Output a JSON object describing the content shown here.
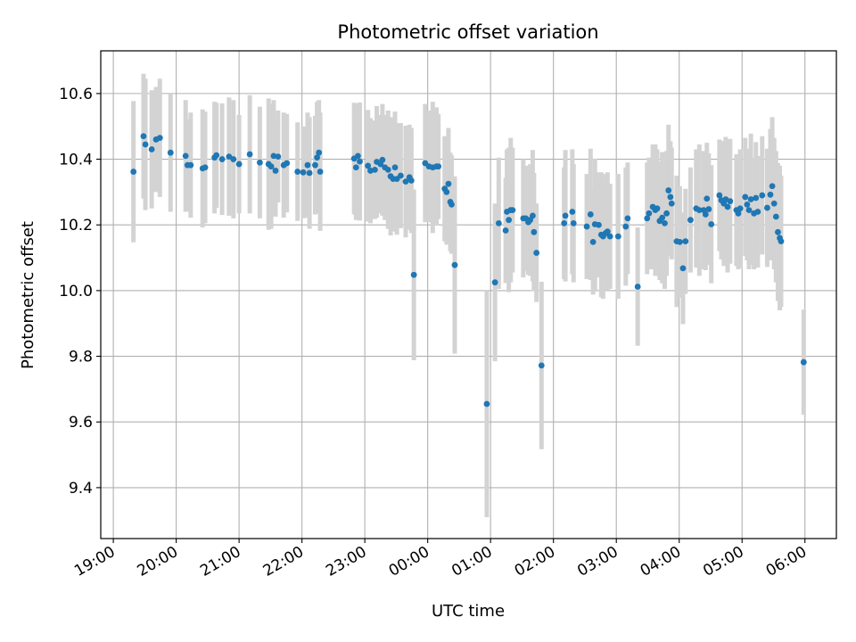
{
  "chart_data": {
    "type": "scatter",
    "title": "Photometric offset variation",
    "xlabel": "UTC time",
    "ylabel": "Photometric offset",
    "x_unit": "hours since 19:00 UTC",
    "xlim": [
      -0.2,
      11.5
    ],
    "ylim": [
      9.245,
      10.73
    ],
    "x_tick_values": [
      0,
      1,
      2,
      3,
      4,
      5,
      6,
      7,
      8,
      9,
      10,
      11
    ],
    "x_tick_labels": [
      "19:00",
      "20:00",
      "21:00",
      "22:00",
      "23:00",
      "00:00",
      "01:00",
      "02:00",
      "03:00",
      "04:00",
      "05:00",
      "06:00"
    ],
    "y_tick_values": [
      9.4,
      9.6,
      9.8,
      10.0,
      10.2,
      10.4,
      10.6
    ],
    "y_tick_labels": [
      "9.4",
      "9.6",
      "9.8",
      "10.0",
      "10.2",
      "10.4",
      "10.6"
    ],
    "grid": true,
    "colors": {
      "point": "#1f77b4",
      "errorbar": "#d3d3d3",
      "grid": "#b0b0b0"
    },
    "series": [
      {
        "points": [
          [
            0.32,
            10.362,
            0.215
          ],
          [
            0.48,
            10.47,
            0.19
          ],
          [
            0.51,
            10.445,
            0.2
          ],
          [
            0.61,
            10.43,
            0.18
          ],
          [
            0.68,
            10.46,
            0.16
          ],
          [
            0.74,
            10.465,
            0.18
          ],
          [
            0.91,
            10.42,
            0.18
          ],
          [
            1.15,
            10.41,
            0.17
          ],
          [
            1.18,
            10.382,
            0.14
          ],
          [
            1.23,
            10.382,
            0.16
          ],
          [
            1.42,
            10.372,
            0.18
          ],
          [
            1.46,
            10.375,
            0.17
          ],
          [
            1.61,
            10.405,
            0.17
          ],
          [
            1.64,
            10.412,
            0.16
          ],
          [
            1.73,
            10.4,
            0.17
          ],
          [
            1.84,
            10.408,
            0.18
          ],
          [
            1.91,
            10.4,
            0.18
          ],
          [
            2.0,
            10.385,
            0.15
          ],
          [
            2.17,
            10.415,
            0.18
          ],
          [
            2.33,
            10.39,
            0.17
          ],
          [
            2.47,
            10.385,
            0.2
          ],
          [
            2.51,
            10.378,
            0.19
          ],
          [
            2.55,
            10.41,
            0.17
          ],
          [
            2.58,
            10.365,
            0.14
          ],
          [
            2.62,
            10.408,
            0.14
          ],
          [
            2.71,
            10.382,
            0.16
          ],
          [
            2.76,
            10.388,
            0.15
          ],
          [
            2.93,
            10.362,
            0.15
          ],
          [
            3.02,
            10.36,
            0.14
          ],
          [
            3.09,
            10.382,
            0.16
          ],
          [
            3.12,
            10.358,
            0.17
          ],
          [
            3.21,
            10.382,
            0.15
          ],
          [
            3.24,
            10.405,
            0.17
          ],
          [
            3.27,
            10.42,
            0.16
          ],
          [
            3.29,
            10.362,
            0.18
          ],
          [
            3.83,
            10.402,
            0.17
          ],
          [
            3.86,
            10.375,
            0.16
          ],
          [
            3.89,
            10.41,
            0.16
          ],
          [
            3.92,
            10.393,
            0.18
          ],
          [
            4.05,
            10.38,
            0.17
          ],
          [
            4.09,
            10.365,
            0.16
          ],
          [
            4.16,
            10.368,
            0.15
          ],
          [
            4.19,
            10.392,
            0.17
          ],
          [
            4.25,
            10.385,
            0.15
          ],
          [
            4.28,
            10.398,
            0.17
          ],
          [
            4.32,
            10.375,
            0.16
          ],
          [
            4.37,
            10.368,
            0.18
          ],
          [
            4.41,
            10.348,
            0.18
          ],
          [
            4.45,
            10.34,
            0.16
          ],
          [
            4.48,
            10.375,
            0.17
          ],
          [
            4.51,
            10.34,
            0.17
          ],
          [
            4.57,
            10.35,
            0.16
          ],
          [
            4.65,
            10.332,
            0.17
          ],
          [
            4.71,
            10.345,
            0.16
          ],
          [
            4.74,
            10.335,
            0.16
          ],
          [
            4.78,
            10.048,
            0.26
          ],
          [
            4.96,
            10.388,
            0.18
          ],
          [
            5.02,
            10.378,
            0.17
          ],
          [
            5.08,
            10.375,
            0.2
          ],
          [
            5.14,
            10.378,
            0.18
          ],
          [
            5.17,
            10.378,
            0.16
          ],
          [
            5.27,
            10.31,
            0.16
          ],
          [
            5.3,
            10.3,
            0.16
          ],
          [
            5.33,
            10.325,
            0.17
          ],
          [
            5.36,
            10.27,
            0.15
          ],
          [
            5.38,
            10.262,
            0.15
          ],
          [
            5.43,
            10.078,
            0.27
          ],
          [
            5.94,
            9.655,
            0.345
          ],
          [
            6.07,
            10.025,
            0.24
          ],
          [
            6.13,
            10.205,
            0.2
          ],
          [
            6.24,
            10.183,
            0.16
          ],
          [
            6.26,
            10.24,
            0.19
          ],
          [
            6.29,
            10.215,
            0.22
          ],
          [
            6.32,
            10.245,
            0.22
          ],
          [
            6.35,
            10.245,
            0.19
          ],
          [
            6.52,
            10.22,
            0.18
          ],
          [
            6.56,
            10.22,
            0.16
          ],
          [
            6.6,
            10.208,
            0.16
          ],
          [
            6.63,
            10.215,
            0.17
          ],
          [
            6.67,
            10.228,
            0.2
          ],
          [
            6.69,
            10.178,
            0.18
          ],
          [
            6.73,
            10.115,
            0.15
          ],
          [
            6.81,
            9.772,
            0.255
          ],
          [
            7.17,
            10.205,
            0.17
          ],
          [
            7.19,
            10.228,
            0.2
          ],
          [
            7.3,
            10.24,
            0.19
          ],
          [
            7.32,
            10.205,
            0.18
          ],
          [
            7.53,
            10.195,
            0.16
          ],
          [
            7.59,
            10.232,
            0.2
          ],
          [
            7.63,
            10.148,
            0.16
          ],
          [
            7.66,
            10.202,
            0.2
          ],
          [
            7.72,
            10.2,
            0.16
          ],
          [
            7.76,
            10.17,
            0.19
          ],
          [
            7.79,
            10.165,
            0.19
          ],
          [
            7.83,
            10.175,
            0.16
          ],
          [
            7.86,
            10.18,
            0.18
          ],
          [
            7.9,
            10.165,
            0.16
          ],
          [
            8.03,
            10.165,
            0.19
          ],
          [
            8.15,
            10.195,
            0.18
          ],
          [
            8.18,
            10.22,
            0.17
          ],
          [
            8.34,
            10.012,
            0.18
          ],
          [
            8.49,
            10.22,
            0.17
          ],
          [
            8.52,
            10.235,
            0.17
          ],
          [
            8.58,
            10.255,
            0.19
          ],
          [
            8.62,
            10.245,
            0.2
          ],
          [
            8.65,
            10.25,
            0.18
          ],
          [
            8.69,
            10.212,
            0.18
          ],
          [
            8.73,
            10.222,
            0.2
          ],
          [
            8.77,
            10.205,
            0.2
          ],
          [
            8.8,
            10.235,
            0.19
          ],
          [
            8.83,
            10.305,
            0.2
          ],
          [
            8.86,
            10.285,
            0.17
          ],
          [
            8.88,
            10.265,
            0.17
          ],
          [
            8.96,
            10.15,
            0.2
          ],
          [
            9.01,
            10.148,
            0.17
          ],
          [
            9.06,
            10.068,
            0.17
          ],
          [
            9.1,
            10.15,
            0.16
          ],
          [
            9.18,
            10.215,
            0.16
          ],
          [
            9.27,
            10.25,
            0.18
          ],
          [
            9.32,
            10.245,
            0.2
          ],
          [
            9.39,
            10.245,
            0.18
          ],
          [
            9.42,
            10.232,
            0.17
          ],
          [
            9.44,
            10.28,
            0.17
          ],
          [
            9.47,
            10.248,
            0.17
          ],
          [
            9.51,
            10.202,
            0.18
          ],
          [
            9.64,
            10.29,
            0.17
          ],
          [
            9.67,
            10.275,
            0.18
          ],
          [
            9.71,
            10.265,
            0.19
          ],
          [
            9.74,
            10.278,
            0.19
          ],
          [
            9.77,
            10.255,
            0.2
          ],
          [
            9.81,
            10.272,
            0.19
          ],
          [
            9.91,
            10.245,
            0.17
          ],
          [
            9.94,
            10.235,
            0.17
          ],
          [
            9.97,
            10.25,
            0.18
          ],
          [
            10.05,
            10.285,
            0.18
          ],
          [
            10.08,
            10.262,
            0.17
          ],
          [
            10.11,
            10.245,
            0.18
          ],
          [
            10.14,
            10.278,
            0.2
          ],
          [
            10.19,
            10.235,
            0.17
          ],
          [
            10.22,
            10.282,
            0.17
          ],
          [
            10.25,
            10.24,
            0.17
          ],
          [
            10.32,
            10.29,
            0.18
          ],
          [
            10.4,
            10.252,
            0.18
          ],
          [
            10.45,
            10.292,
            0.2
          ],
          [
            10.48,
            10.318,
            0.21
          ],
          [
            10.51,
            10.265,
            0.2
          ],
          [
            10.54,
            10.225,
            0.2
          ],
          [
            10.57,
            10.178,
            0.21
          ],
          [
            10.6,
            10.16,
            0.22
          ],
          [
            10.62,
            10.15,
            0.2
          ],
          [
            10.98,
            9.782,
            0.16
          ]
        ]
      }
    ]
  }
}
